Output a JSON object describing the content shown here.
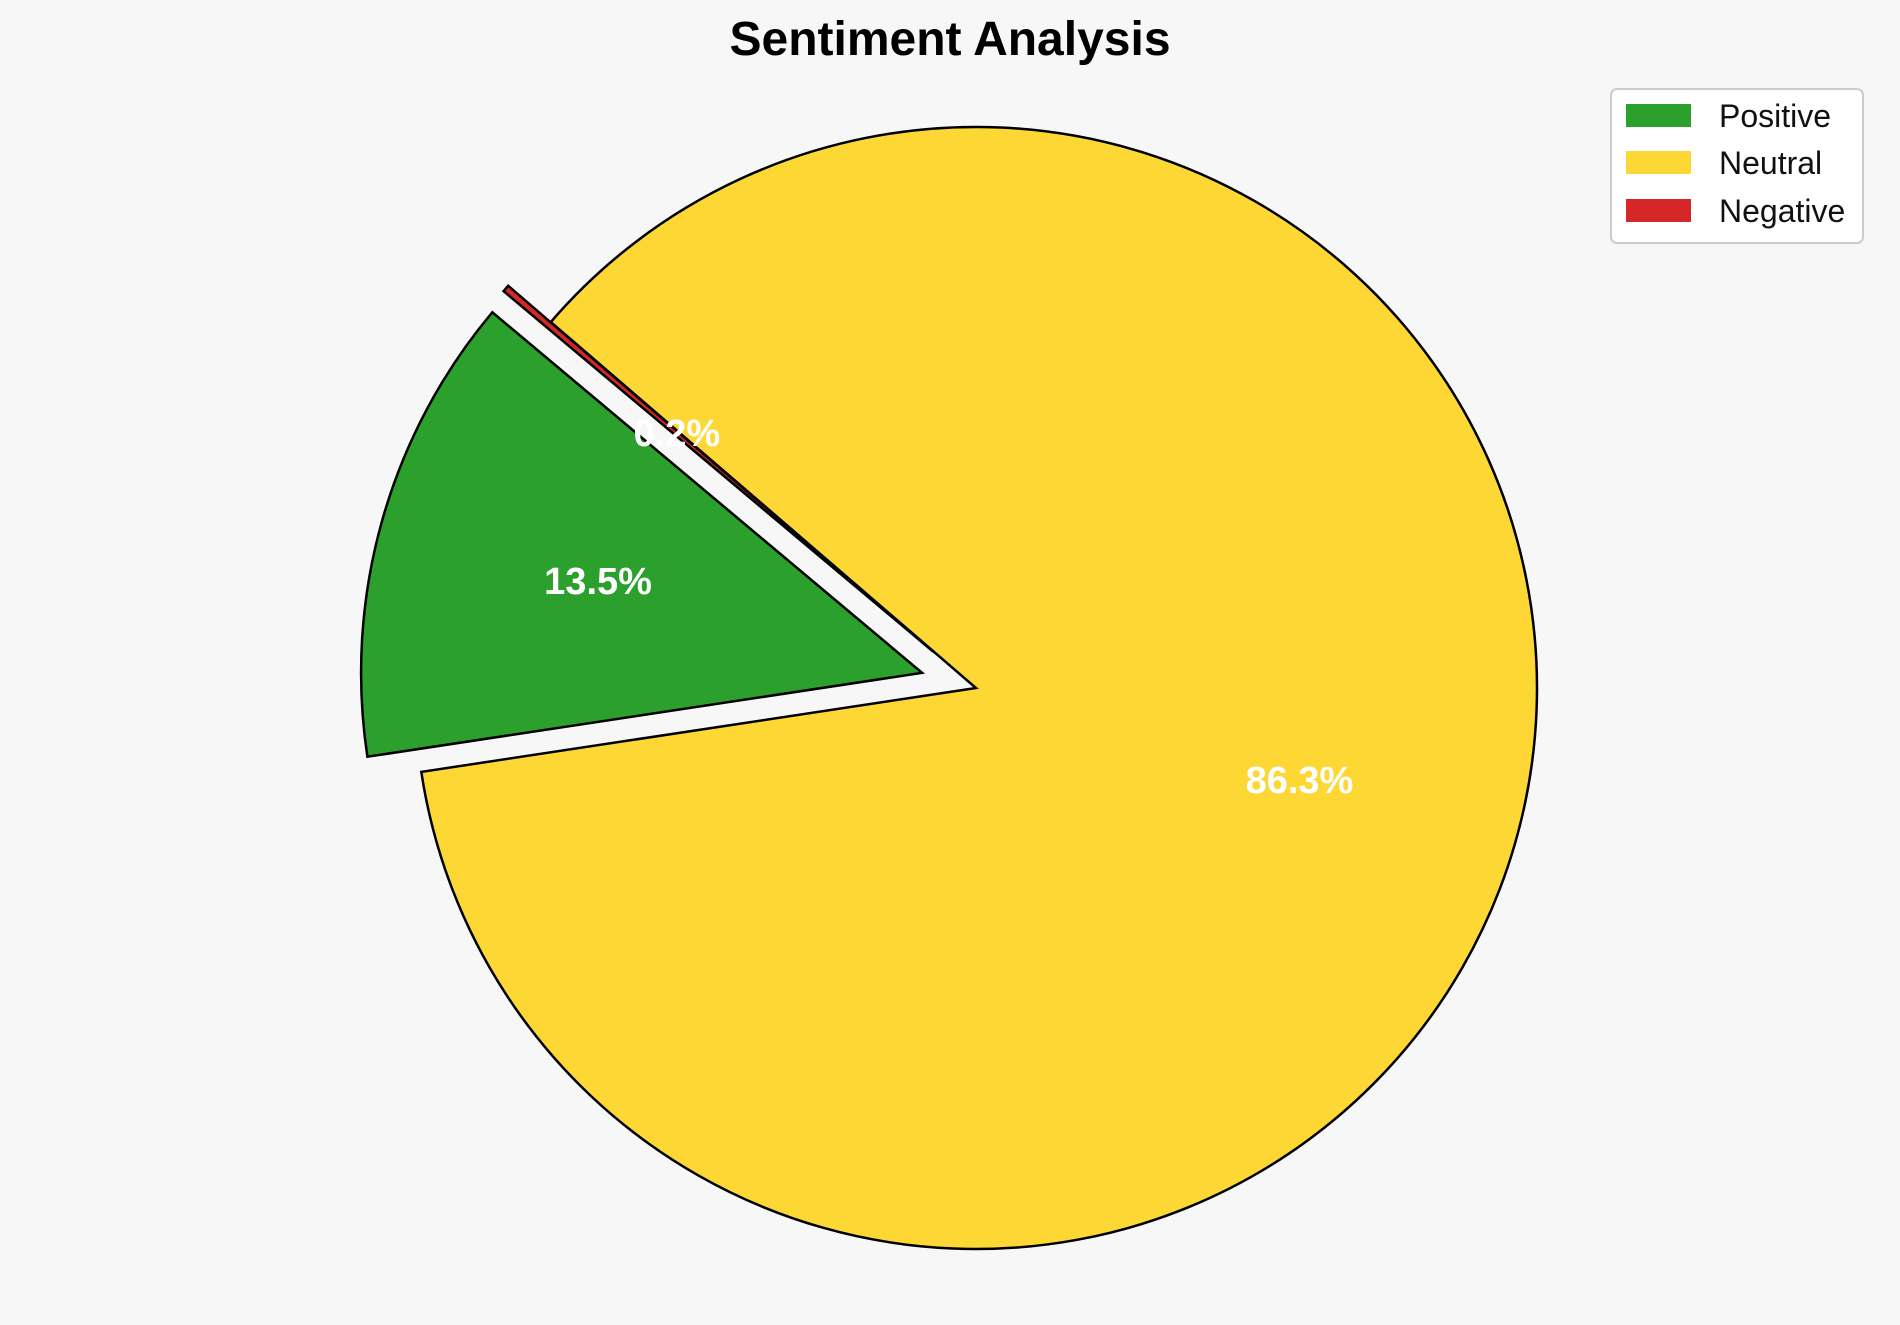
{
  "chart_data": {
    "type": "pie",
    "title": "Sentiment Analysis",
    "categories": [
      "Positive",
      "Neutral",
      "Negative"
    ],
    "values": [
      13.5,
      86.3,
      0.2
    ],
    "labels": [
      "13.5%",
      "86.3%",
      "0.2%"
    ],
    "colors": [
      "#2ca02c",
      "#fdd835",
      "#d62728"
    ],
    "exploded": [
      true,
      false,
      true
    ],
    "start_angle_deg": 140,
    "direction": "counterclockwise",
    "legend": {
      "position": "top-right",
      "entries": [
        "Positive",
        "Neutral",
        "Negative"
      ]
    },
    "edge_color": "#000000"
  }
}
